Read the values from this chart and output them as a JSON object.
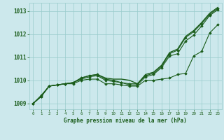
{
  "title": "Graphe pression niveau de la mer (hPa)",
  "background_color": "#cce8ec",
  "grid_color": "#99cccc",
  "line_color": "#1a5c1a",
  "xlim": [
    -0.5,
    23.5
  ],
  "ylim": [
    1008.75,
    1013.35
  ],
  "yticks": [
    1009,
    1010,
    1011,
    1012,
    1013
  ],
  "xticks": [
    0,
    1,
    2,
    3,
    4,
    5,
    6,
    7,
    8,
    9,
    10,
    11,
    12,
    13,
    14,
    15,
    16,
    17,
    18,
    19,
    20,
    21,
    22,
    23
  ],
  "series": [
    {
      "y": [
        1009.0,
        1009.3,
        1009.75,
        1009.8,
        1009.85,
        1009.9,
        1010.1,
        1010.2,
        1010.25,
        1010.1,
        1010.05,
        1010.05,
        1010.0,
        1009.85,
        1010.25,
        1010.35,
        1010.65,
        1011.2,
        1011.35,
        1011.9,
        1012.15,
        1012.5,
        1012.9,
        1013.15
      ],
      "marker": null,
      "linewidth": 1.0
    },
    {
      "y": [
        1009.0,
        1009.3,
        1009.75,
        1009.8,
        1009.85,
        1009.9,
        1010.1,
        1010.2,
        1010.25,
        1010.05,
        1010.0,
        1009.9,
        1009.85,
        1009.85,
        1010.2,
        1010.3,
        1010.6,
        1011.15,
        1011.3,
        1011.85,
        1012.1,
        1012.45,
        1012.85,
        1013.1
      ],
      "marker": "D",
      "linewidth": 0.8
    },
    {
      "y": [
        1009.0,
        1009.3,
        1009.75,
        1009.8,
        1009.85,
        1009.9,
        1010.05,
        1010.15,
        1010.2,
        1010.0,
        1009.95,
        1009.9,
        1009.8,
        1009.8,
        1010.15,
        1010.25,
        1010.55,
        1011.05,
        1011.15,
        1011.7,
        1011.95,
        1012.35,
        1012.8,
        1013.05
      ],
      "marker": "D",
      "linewidth": 0.8
    },
    {
      "y": [
        1009.0,
        1009.35,
        1009.75,
        1009.8,
        1009.85,
        1009.85,
        1010.0,
        1010.05,
        1010.05,
        1009.85,
        1009.85,
        1009.8,
        1009.75,
        1009.75,
        1010.0,
        1010.0,
        1010.05,
        1010.1,
        1010.25,
        1010.3,
        1011.05,
        1011.25,
        1012.05,
        1012.4
      ],
      "marker": "D",
      "linewidth": 0.8
    }
  ]
}
